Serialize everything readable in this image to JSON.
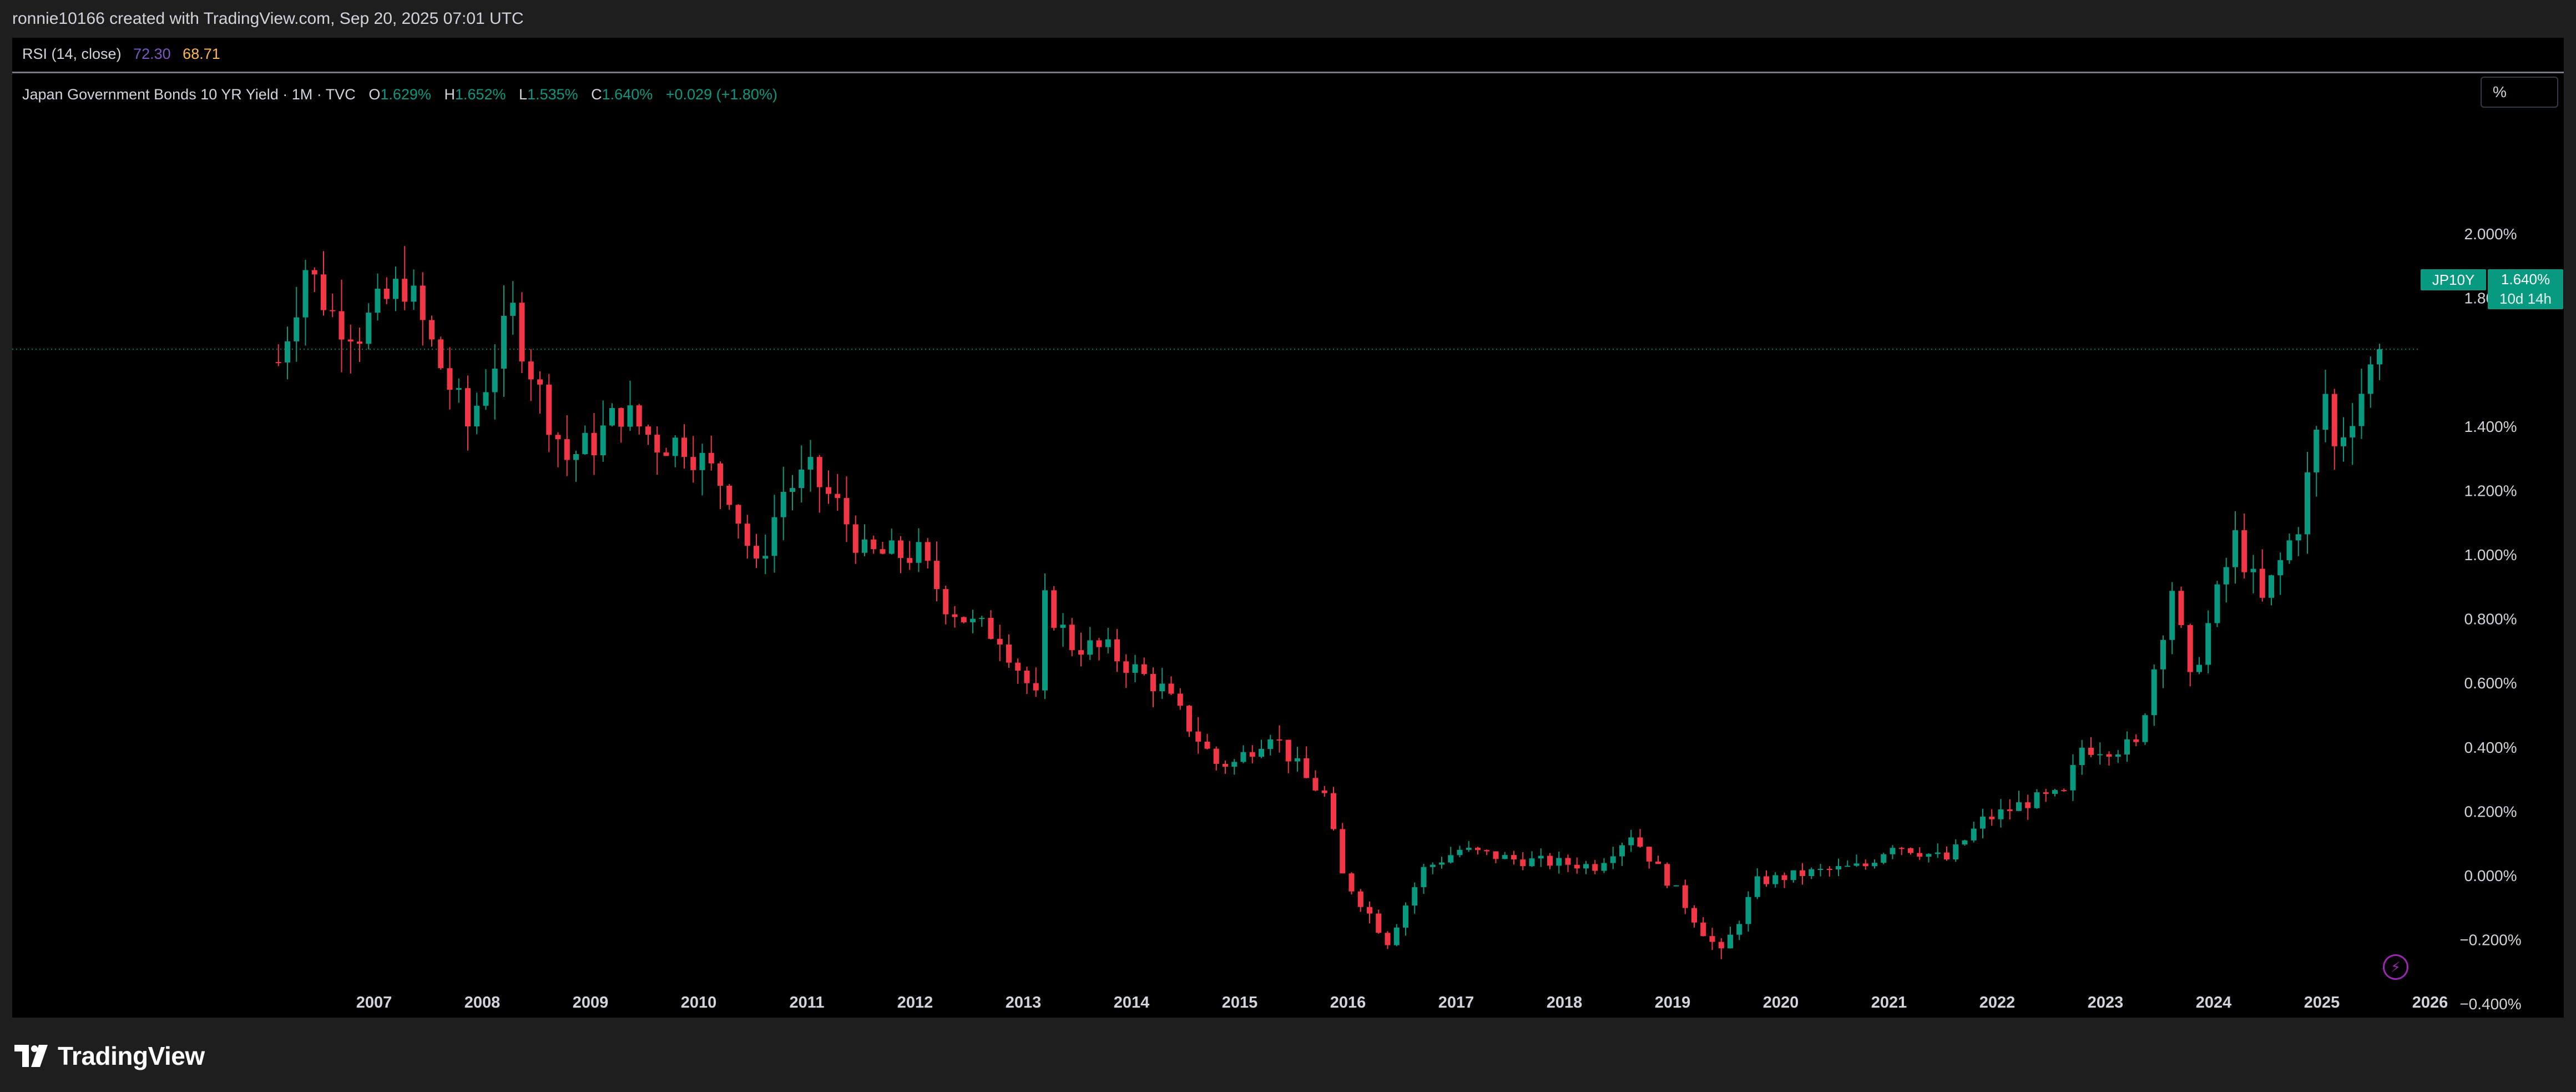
{
  "topbar": {
    "credit": "ronnie10166 created with TradingView.com, Sep 20, 2025 07:01 UTC"
  },
  "rsi": {
    "label": "RSI (14, close)",
    "value1": "72.30",
    "value2": "68.71",
    "color1": "#7e57c2",
    "color2": "#ffb74d"
  },
  "legend": {
    "title": "Japan Government Bonds 10 YR Yield · 1M · TVC",
    "o_label": "O",
    "o_value": "1.629%",
    "h_label": "H",
    "h_value": "1.652%",
    "l_label": "L",
    "l_value": "1.535%",
    "c_label": "C",
    "c_value": "1.640%",
    "change": "+0.029 (+1.80%)"
  },
  "unit_button": "%",
  "price_tag": {
    "symbol": "JP10Y",
    "price": "1.640%",
    "countdown": "10d 14h",
    "color": "#089981"
  },
  "brand": {
    "name": "TradingView"
  },
  "colors": {
    "up": "#089981",
    "down": "#f23645",
    "background": "#000000"
  },
  "chart_data": {
    "type": "candlestick",
    "title": "Japan Government Bonds 10 YR Yield · 1M · TVC",
    "interval": "1M",
    "y_axis": {
      "unit": "%",
      "ticks": [
        "2.000%",
        "1.800%",
        "1.400%",
        "1.200%",
        "1.000%",
        "0.800%",
        "0.600%",
        "0.400%",
        "0.200%",
        "0.000%",
        "−0.200%",
        "−0.400%"
      ],
      "range": [
        -0.5,
        2.1
      ]
    },
    "x_axis": {
      "ticks": [
        "2007",
        "2008",
        "2009",
        "2010",
        "2011",
        "2012",
        "2013",
        "2014",
        "2015",
        "2016",
        "2017",
        "2018",
        "2019",
        "2020",
        "2021",
        "2022",
        "2023",
        "2024",
        "2025",
        "2026"
      ],
      "range": [
        "2006-01",
        "2026-07"
      ]
    },
    "last_price": 1.64,
    "anchors": [
      [
        "2006-04",
        1.6
      ],
      [
        "2006-07",
        1.9
      ],
      [
        "2006-10",
        1.75
      ],
      [
        "2007-01",
        1.7
      ],
      [
        "2007-06",
        1.85
      ],
      [
        "2007-09",
        1.65
      ],
      [
        "2008-01",
        1.4
      ],
      [
        "2008-06",
        1.75
      ],
      [
        "2008-09",
        1.5
      ],
      [
        "2008-12",
        1.3
      ],
      [
        "2009-03",
        1.35
      ],
      [
        "2009-06",
        1.45
      ],
      [
        "2009-10",
        1.35
      ],
      [
        "2010-01",
        1.35
      ],
      [
        "2010-06",
        1.2
      ],
      [
        "2010-09",
        0.95
      ],
      [
        "2010-12",
        1.2
      ],
      [
        "2011-03",
        1.25
      ],
      [
        "2011-06",
        1.15
      ],
      [
        "2011-09",
        1.0
      ],
      [
        "2011-12",
        1.0
      ],
      [
        "2012-03",
        1.0
      ],
      [
        "2012-06",
        0.85
      ],
      [
        "2012-09",
        0.78
      ],
      [
        "2012-12",
        0.75
      ],
      [
        "2013-04",
        0.55
      ],
      [
        "2013-05",
        0.85
      ],
      [
        "2013-08",
        0.72
      ],
      [
        "2013-12",
        0.7
      ],
      [
        "2014-06",
        0.58
      ],
      [
        "2014-12",
        0.35
      ],
      [
        "2015-02",
        0.35
      ],
      [
        "2015-06",
        0.45
      ],
      [
        "2015-10",
        0.3
      ],
      [
        "2015-12",
        0.25
      ],
      [
        "2016-02",
        0.0
      ],
      [
        "2016-07",
        -0.2
      ],
      [
        "2016-11",
        0.02
      ],
      [
        "2017-03",
        0.08
      ],
      [
        "2017-09",
        0.05
      ],
      [
        "2018-06",
        0.03
      ],
      [
        "2018-10",
        0.13
      ],
      [
        "2019-03",
        -0.05
      ],
      [
        "2019-08",
        -0.25
      ],
      [
        "2019-12",
        -0.02
      ],
      [
        "2020-06",
        0.01
      ],
      [
        "2020-12",
        0.03
      ],
      [
        "2021-03",
        0.1
      ],
      [
        "2021-09",
        0.05
      ],
      [
        "2022-01",
        0.17
      ],
      [
        "2022-06",
        0.23
      ],
      [
        "2022-10",
        0.25
      ],
      [
        "2022-12",
        0.4
      ],
      [
        "2023-06",
        0.4
      ],
      [
        "2023-10",
        0.9
      ],
      [
        "2023-12",
        0.6
      ],
      [
        "2024-05",
        1.05
      ],
      [
        "2024-08",
        0.85
      ],
      [
        "2024-12",
        1.1
      ],
      [
        "2025-03",
        1.5
      ],
      [
        "2025-04",
        1.33
      ],
      [
        "2025-06",
        1.45
      ],
      [
        "2025-09",
        1.64
      ]
    ]
  }
}
